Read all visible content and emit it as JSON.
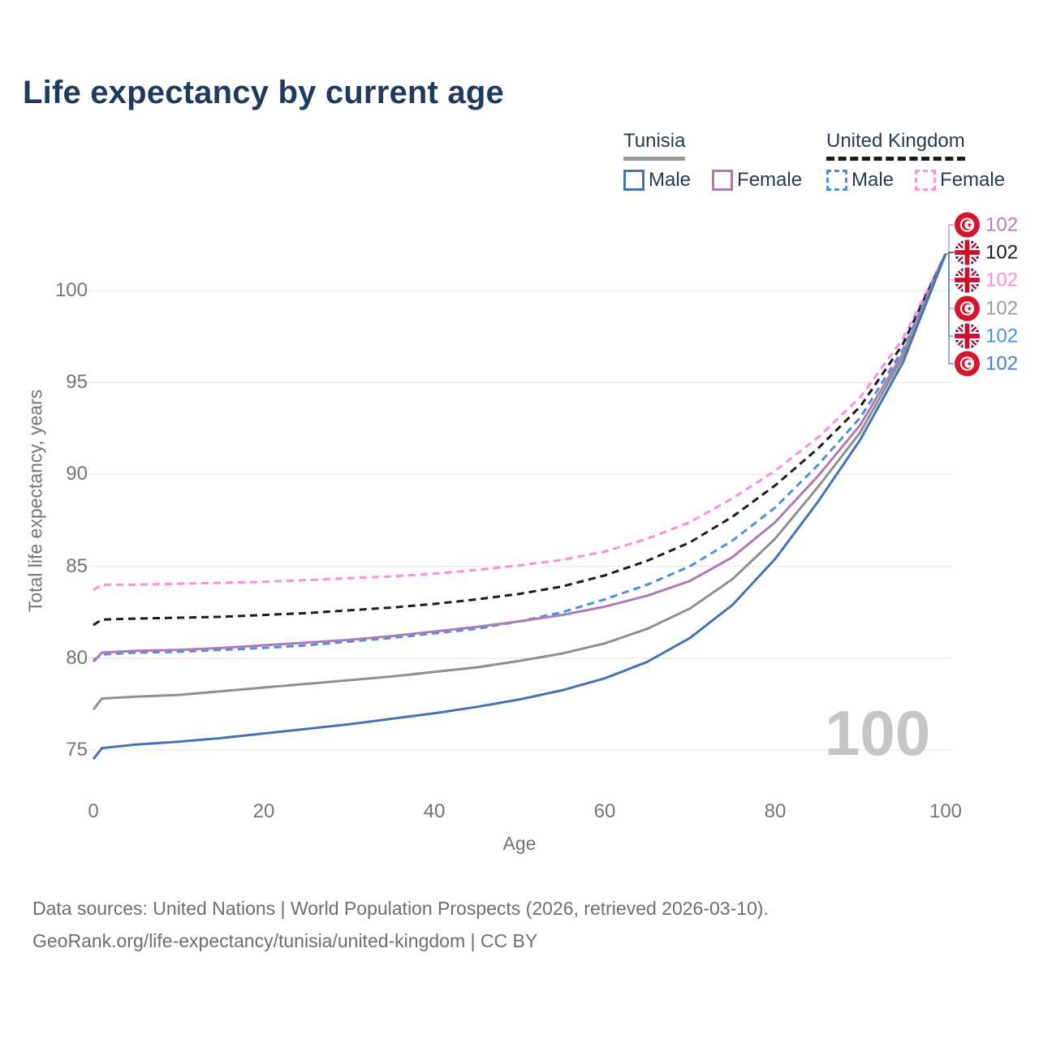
{
  "title": "Life expectancy by current age",
  "legend": {
    "tunisia": {
      "label": "Tunisia",
      "line_color": "#9a9a9a",
      "items": [
        {
          "label": "Male",
          "color": "#4473b9"
        },
        {
          "label": "Female",
          "color": "#b07ab2"
        }
      ]
    },
    "uk": {
      "label": "United Kingdom",
      "line_color": "#1a1a1a",
      "items": [
        {
          "label": "Male",
          "color": "#4a90e9"
        },
        {
          "label": "Female",
          "color": "#ff8be2"
        }
      ]
    }
  },
  "chart_data": {
    "type": "line",
    "title": "Life expectancy by current age",
    "xlabel": "Age",
    "ylabel": "Total life expectancy, years",
    "x_ticks": [
      0,
      20,
      40,
      60,
      80,
      100
    ],
    "y_ticks": [
      100,
      95,
      90,
      85,
      80,
      75
    ],
    "xlim": [
      0,
      100
    ],
    "ylim": [
      73.5,
      103
    ],
    "grid": "horizontal",
    "legend_position": "top-right",
    "watermark": "100",
    "x": [
      0,
      1,
      5,
      10,
      15,
      20,
      25,
      30,
      35,
      40,
      45,
      50,
      55,
      60,
      65,
      70,
      75,
      80,
      85,
      90,
      95,
      100
    ],
    "series": [
      {
        "name": "United Kingdom Female",
        "country": "United Kingdom",
        "sex": "Female",
        "color": "#ff8be2",
        "dashed": true,
        "values": [
          83.7,
          84.0,
          84.0,
          84.05,
          84.1,
          84.15,
          84.25,
          84.35,
          84.45,
          84.6,
          84.8,
          85.05,
          85.35,
          85.8,
          86.5,
          87.4,
          88.7,
          90.2,
          92.0,
          94.2,
          97.4,
          102
        ]
      },
      {
        "name": "United Kingdom Total",
        "country": "United Kingdom",
        "sex": "Total",
        "color": "#1c1c1c",
        "dashed": true,
        "values": [
          81.8,
          82.1,
          82.15,
          82.2,
          82.25,
          82.35,
          82.45,
          82.6,
          82.75,
          82.95,
          83.2,
          83.5,
          83.9,
          84.5,
          85.3,
          86.3,
          87.7,
          89.4,
          91.4,
          93.7,
          97.1,
          102
        ]
      },
      {
        "name": "United Kingdom Male",
        "country": "United Kingdom",
        "sex": "Male",
        "color": "#4a90e9",
        "dashed": true,
        "values": [
          79.9,
          80.2,
          80.3,
          80.35,
          80.45,
          80.55,
          80.7,
          80.9,
          81.1,
          81.35,
          81.6,
          82.0,
          82.5,
          83.2,
          84.0,
          85.0,
          86.4,
          88.2,
          90.5,
          93.1,
          96.8,
          102
        ]
      },
      {
        "name": "Tunisia Female",
        "country": "Tunisia",
        "sex": "Female",
        "color": "#b07ab2",
        "dashed": false,
        "values": [
          79.8,
          80.3,
          80.4,
          80.45,
          80.55,
          80.7,
          80.85,
          81.0,
          81.2,
          81.45,
          81.7,
          82.0,
          82.35,
          82.8,
          83.4,
          84.2,
          85.5,
          87.4,
          89.9,
          92.7,
          96.6,
          102
        ]
      },
      {
        "name": "Tunisia Total",
        "country": "Tunisia",
        "sex": "Total",
        "color": "#8f8f8f",
        "dashed": false,
        "values": [
          77.2,
          77.8,
          77.9,
          78.0,
          78.2,
          78.4,
          78.6,
          78.8,
          79.0,
          79.25,
          79.5,
          79.85,
          80.25,
          80.8,
          81.6,
          82.7,
          84.3,
          86.5,
          89.3,
          92.3,
          96.4,
          102
        ]
      },
      {
        "name": "Tunisia Male",
        "country": "Tunisia",
        "sex": "Male",
        "color": "#4473b9",
        "dashed": false,
        "values": [
          74.5,
          75.1,
          75.3,
          75.45,
          75.65,
          75.9,
          76.15,
          76.4,
          76.7,
          77.0,
          77.35,
          77.75,
          78.25,
          78.9,
          79.8,
          81.1,
          82.9,
          85.4,
          88.5,
          91.9,
          96.1,
          102
        ]
      }
    ],
    "end_labels": [
      {
        "flag": "tunisia",
        "series": "Tunisia Female",
        "value": "102",
        "color": "#b97ab9"
      },
      {
        "flag": "uk",
        "series": "United Kingdom Total",
        "value": "102",
        "color": "#1c1c1c"
      },
      {
        "flag": "uk",
        "series": "United Kingdom Female",
        "value": "102",
        "color": "#ff8be2"
      },
      {
        "flag": "tunisia",
        "series": "Tunisia Total",
        "value": "102",
        "color": "#9a9a9a"
      },
      {
        "flag": "uk",
        "series": "United Kingdom Male",
        "value": "102",
        "color": "#4a90e9"
      },
      {
        "flag": "tunisia",
        "series": "Tunisia Male",
        "value": "102",
        "color": "#4f7bc8"
      }
    ]
  },
  "footer": {
    "line1": "Data sources: United Nations | World Population Prospects (2026, retrieved 2026-03-10).",
    "line2": "GeoRank.org/life-expectancy/tunisia/united-kingdom | CC BY"
  }
}
